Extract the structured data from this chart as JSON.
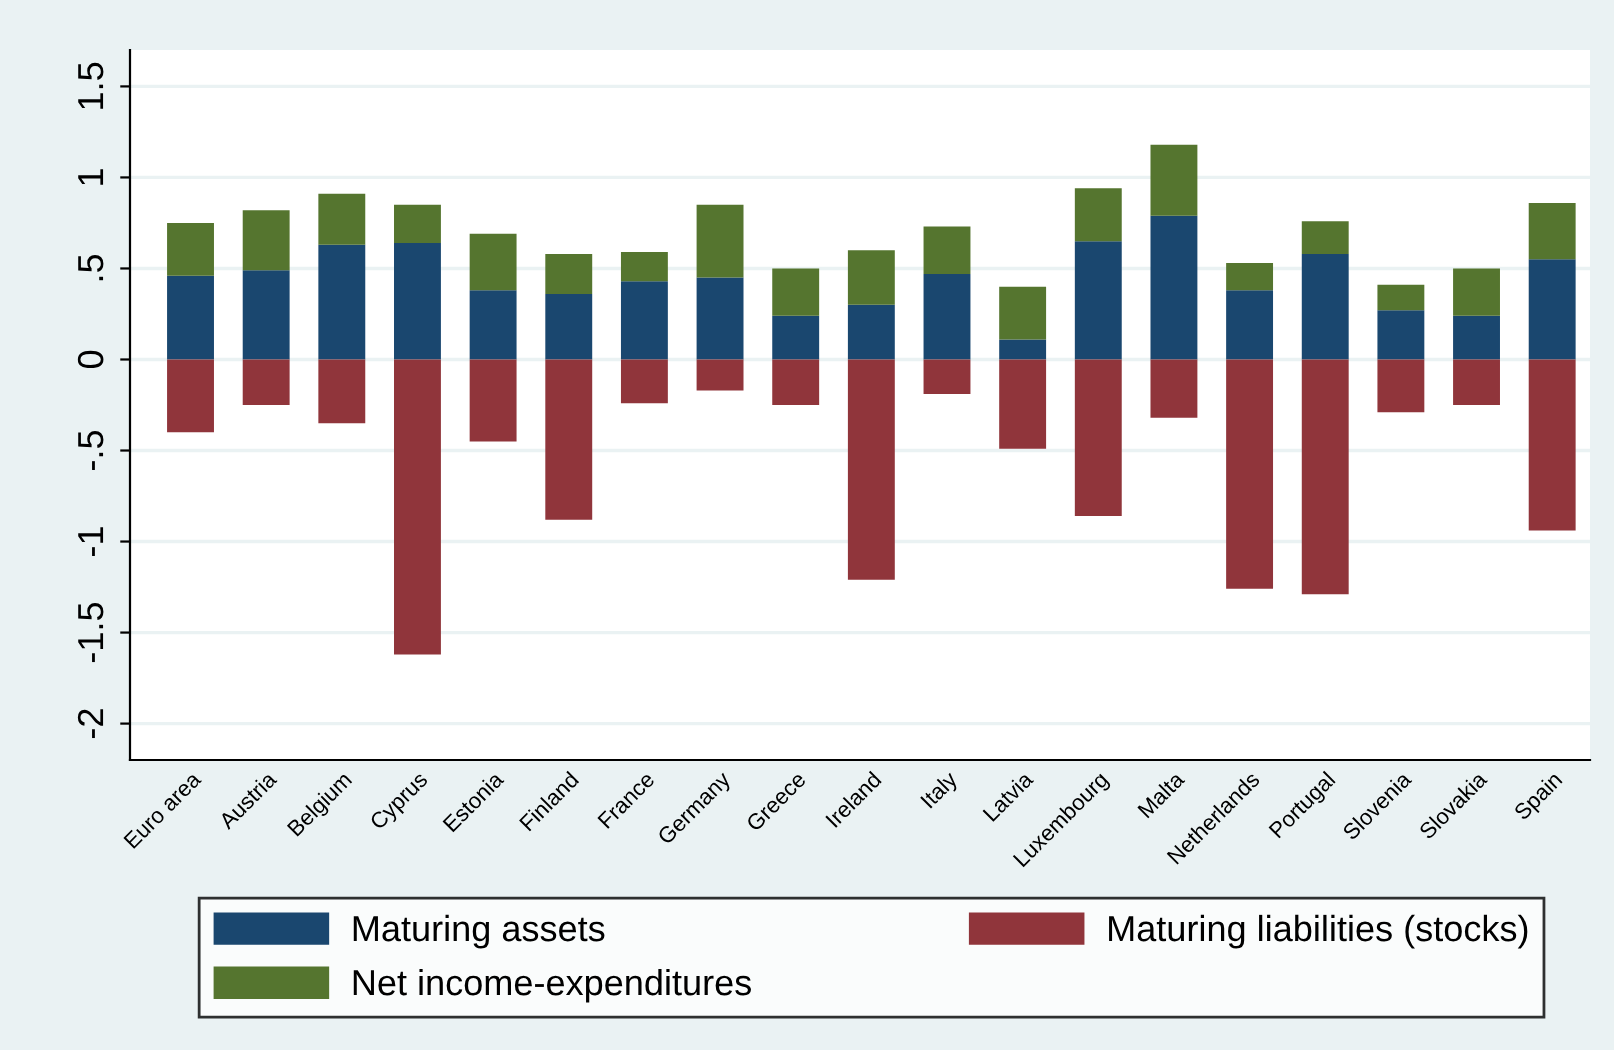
{
  "chart_data": {
    "type": "bar",
    "stacked": true,
    "categories": [
      "Euro area",
      "Austria",
      "Belgium",
      "Cyprus",
      "Estonia",
      "Finland",
      "France",
      "Germany",
      "Greece",
      "Ireland",
      "Italy",
      "Latvia",
      "Luxembourg",
      "Malta",
      "Netherlands",
      "Portugal",
      "Slovenia",
      "Slovakia",
      "Spain"
    ],
    "series": [
      {
        "name": "Maturing assets",
        "color": "#1a476f",
        "values": [
          0.46,
          0.49,
          0.63,
          0.64,
          0.38,
          0.36,
          0.43,
          0.45,
          0.24,
          0.3,
          0.47,
          0.11,
          0.65,
          0.79,
          0.38,
          0.58,
          0.27,
          0.24,
          0.55
        ]
      },
      {
        "name": "Maturing liabilities (stocks)",
        "color": "#90353b",
        "values": [
          -0.4,
          -0.25,
          -0.35,
          -1.62,
          -0.45,
          -0.88,
          -0.24,
          -0.17,
          -0.25,
          -1.21,
          -0.19,
          -0.49,
          -0.86,
          -0.32,
          -1.26,
          -1.29,
          -0.29,
          -0.25,
          -0.94
        ]
      },
      {
        "name": "Net income-expenditures",
        "color": "#55752f",
        "values": [
          0.29,
          0.33,
          0.28,
          0.21,
          0.31,
          0.22,
          0.16,
          0.4,
          0.26,
          0.3,
          0.26,
          0.29,
          0.29,
          0.39,
          0.15,
          0.18,
          0.14,
          0.26,
          0.31
        ]
      }
    ],
    "ylim": [
      -2.2,
      1.7
    ],
    "yticks": [
      {
        "value": -2,
        "label": "-2"
      },
      {
        "value": -1.5,
        "label": "-1.5"
      },
      {
        "value": -1,
        "label": "-1"
      },
      {
        "value": -0.5,
        "label": "-.5"
      },
      {
        "value": 0,
        "label": "0"
      },
      {
        "value": 0.5,
        "label": ".5"
      },
      {
        "value": 1,
        "label": "1"
      },
      {
        "value": 1.5,
        "label": "1.5"
      }
    ],
    "grid": "y",
    "legend": "bottom"
  }
}
